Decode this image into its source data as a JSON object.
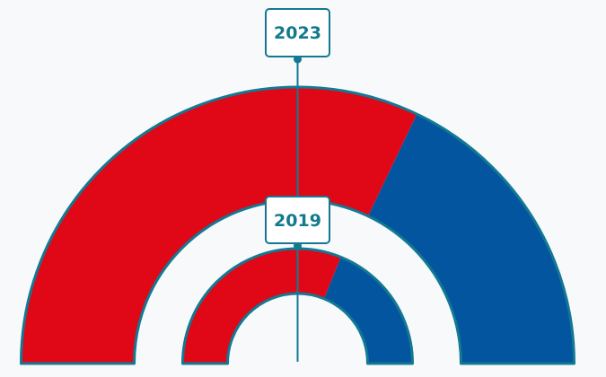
{
  "colors": {
    "background": "#f7f9fb",
    "party_red": "#e00717",
    "party_blue": "#02559e",
    "outline": "#137993",
    "label_text": "#13798f"
  },
  "chart_data": [
    {
      "type": "pie",
      "variant": "half-donut",
      "label": "2023",
      "series": [
        {
          "color": "#e00717",
          "value": 0.642
        },
        {
          "color": "#02559e",
          "value": 0.358
        }
      ]
    },
    {
      "type": "pie",
      "variant": "half-donut",
      "label": "2019",
      "series": [
        {
          "color": "#e00717",
          "value": 0.623
        },
        {
          "color": "#02559e",
          "value": 0.377
        }
      ]
    }
  ]
}
